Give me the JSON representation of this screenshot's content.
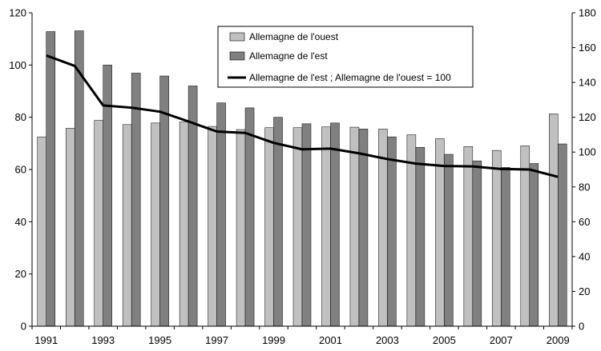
{
  "chart_data": {
    "type": "bar",
    "title": "",
    "xlabel": "",
    "ylabel": "",
    "x": [
      1991,
      1992,
      1993,
      1994,
      1995,
      1996,
      1997,
      1998,
      1999,
      2000,
      2001,
      2002,
      2003,
      2004,
      2005,
      2006,
      2007,
      2008,
      2009
    ],
    "x_tick_labels": [
      "1991",
      "1993",
      "1995",
      "1997",
      "1999",
      "2001",
      "2003",
      "2005",
      "2007",
      "2009"
    ],
    "ylim_left": [
      0,
      120
    ],
    "y_ticks_left": [
      "0",
      "20",
      "40",
      "60",
      "80",
      "100",
      "120"
    ],
    "ylim_right": [
      0,
      180
    ],
    "y_ticks_right": [
      "0",
      "20",
      "40",
      "60",
      "80",
      "100",
      "120",
      "140",
      "160",
      "180"
    ],
    "grid": false,
    "legend_position": "top-center",
    "series": [
      {
        "name": "Allemagne  de l'ouest",
        "type": "bar",
        "axis": "left",
        "color": "#c0c0c0",
        "values": [
          72.5,
          75.8,
          78.8,
          77.2,
          77.8,
          78.2,
          76.5,
          75.3,
          76.0,
          76.0,
          76.3,
          76.2,
          75.5,
          73.3,
          71.8,
          68.8,
          67.3,
          69.1,
          81.3
        ]
      },
      {
        "name": "Allemagne  de l'est",
        "type": "bar",
        "axis": "left",
        "color": "#808080",
        "values": [
          112.8,
          113.1,
          100.0,
          96.9,
          95.8,
          92.0,
          85.5,
          83.6,
          80.0,
          77.5,
          77.8,
          75.5,
          72.5,
          68.5,
          65.8,
          63.3,
          60.8,
          62.3,
          69.8
        ]
      },
      {
        "name": "Allemagne de l'est ; Allemagne  de l'ouest = 100",
        "type": "line",
        "axis": "right",
        "color": "#000000",
        "values": [
          155.5,
          149.5,
          126.8,
          125.5,
          123.2,
          117.6,
          111.8,
          111.0,
          105.3,
          101.6,
          102.0,
          99.3,
          96.0,
          93.4,
          92.0,
          91.8,
          90.3,
          90.0,
          85.8
        ]
      }
    ]
  }
}
